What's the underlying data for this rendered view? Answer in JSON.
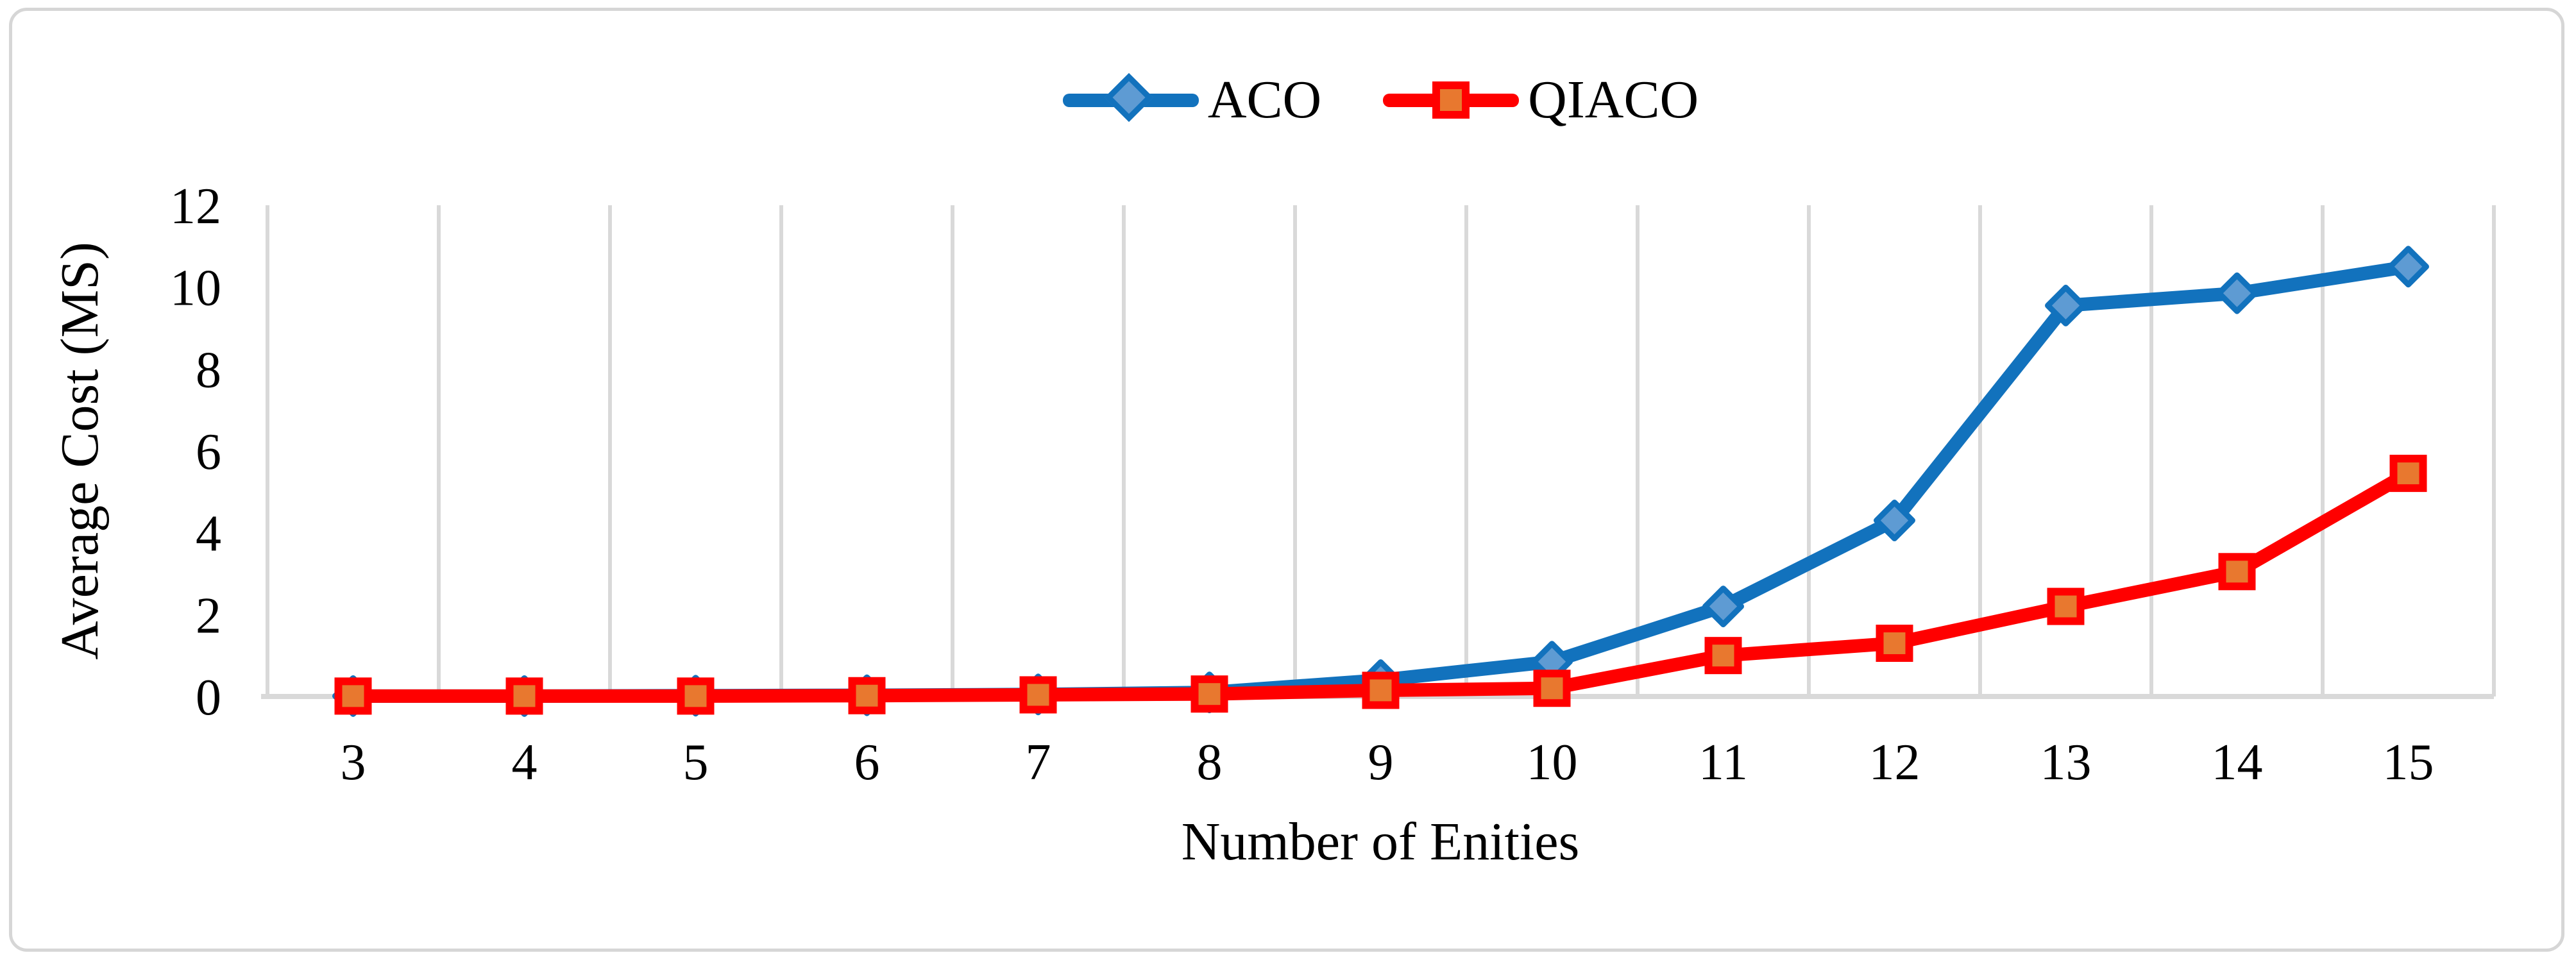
{
  "figure": {
    "kind": "line chart",
    "background": "#FFFFFF",
    "border_color": "#D6D6D6",
    "text_color": "#000000",
    "gridline_color": "#D9D9D9",
    "axisline_color": "#D9D9D9"
  },
  "legend": {
    "position": "top-center",
    "items": [
      {
        "label": "ACO",
        "line_color": "#1272BD",
        "marker": "diamond",
        "marker_fill": "#5E9BD3"
      },
      {
        "label": "QIACO",
        "line_color": "#FF0000",
        "marker": "square",
        "marker_fill": "#E8782F"
      }
    ]
  },
  "chart_data": {
    "type": "line",
    "title": "",
    "xlabel": "Number of Enities",
    "ylabel": "Average Cost (MS)",
    "categories": [
      3,
      4,
      5,
      6,
      7,
      8,
      9,
      10,
      11,
      12,
      13,
      14,
      15
    ],
    "series": [
      {
        "name": "ACO",
        "color": "#1272BD",
        "marker": "diamond",
        "marker_fill": "#5E9BD3",
        "values": [
          0.01,
          0.01,
          0.02,
          0.03,
          0.05,
          0.1,
          0.4,
          0.85,
          2.2,
          4.3,
          9.55,
          9.85,
          10.5
        ]
      },
      {
        "name": "QIACO",
        "color": "#FF0000",
        "marker": "square",
        "marker_fill": "#E8782F",
        "values": [
          0.01,
          0.01,
          0.01,
          0.02,
          0.04,
          0.06,
          0.15,
          0.2,
          1.0,
          1.3,
          2.2,
          3.05,
          5.45
        ]
      }
    ],
    "ylim": [
      0,
      12
    ],
    "yticks": [
      0,
      2,
      4,
      6,
      8,
      10,
      12
    ],
    "grid": "vertical-only",
    "legend_position": "top"
  }
}
